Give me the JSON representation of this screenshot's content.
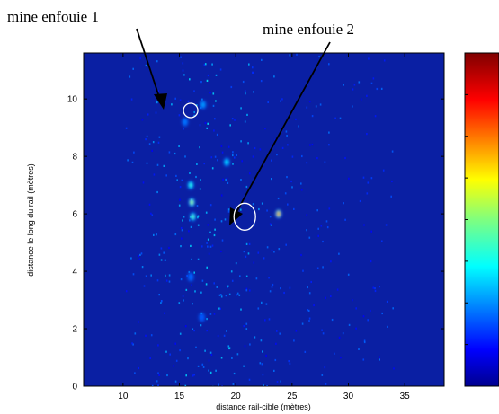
{
  "chart_data": {
    "type": "heatmap",
    "title": "",
    "xlabel": "distance rail-cible (mètres)",
    "ylabel": "distance le long du rail (mètres)",
    "xlim": [
      6.5,
      38.5
    ],
    "ylim": [
      0,
      11.6
    ],
    "x_ticks": [
      "10",
      "15",
      "20",
      "25",
      "30",
      "35"
    ],
    "y_ticks": [
      "0",
      "2",
      "4",
      "6",
      "8",
      "10"
    ],
    "colormap": "jet",
    "background_color": "#0a1fa3",
    "hotspots": [
      {
        "x": 16.1,
        "y": 6.4,
        "intensity": 0.6
      },
      {
        "x": 16.0,
        "y": 7.0,
        "intensity": 0.45
      },
      {
        "x": 16.2,
        "y": 5.9,
        "intensity": 0.5
      },
      {
        "x": 23.8,
        "y": 6.0,
        "intensity": 0.9
      },
      {
        "x": 19.2,
        "y": 7.8,
        "intensity": 0.38
      },
      {
        "x": 17.1,
        "y": 9.8,
        "intensity": 0.3
      },
      {
        "x": 15.5,
        "y": 9.2,
        "intensity": 0.25
      },
      {
        "x": 16.0,
        "y": 3.8,
        "intensity": 0.22
      },
      {
        "x": 17.0,
        "y": 2.4,
        "intensity": 0.2
      }
    ],
    "annotations": [
      {
        "text": "mine enfouie 1",
        "target_x": 16.0,
        "target_y": 9.6
      },
      {
        "text": "mine enfouie 2",
        "target_x": 20.8,
        "target_y": 5.9
      }
    ]
  }
}
